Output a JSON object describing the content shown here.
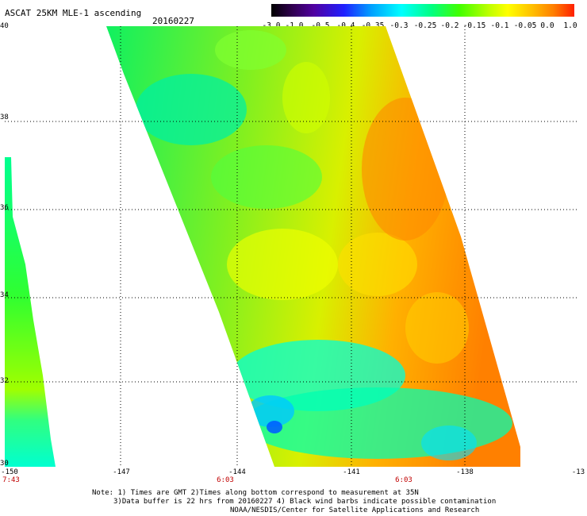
{
  "header": {
    "title": "ASCAT 25KM MLE-1 ascending",
    "date": "20160227"
  },
  "colorbar": {
    "labels": [
      "-3.0",
      "-1.0",
      "-0.5",
      "-0.4",
      "-0.35",
      "-0.3",
      "-0.25",
      "-0.2",
      "-0.15",
      "-0.1",
      "-0.05",
      "0.0",
      "1.0"
    ]
  },
  "axes": {
    "lat_labels": [
      "40",
      "38",
      "36",
      "34",
      "32",
      "30"
    ],
    "lon_labels": [
      "-150",
      "-147",
      "-144",
      "-141",
      "-138",
      "-13"
    ],
    "time_labels": [
      "7:43",
      "6:03",
      "6:03"
    ]
  },
  "notes": {
    "line1": "Note: 1) Times are GMT 2)Times along bottom correspond to measurement at 35N",
    "line2": "3)Data buffer is 22 hrs from 20160227 4) Black wind barbs indicate possible contamination",
    "line3": "NOAA/NESDIS/Center for Satellite Applications and Research"
  },
  "colors": {
    "grid": "#000000",
    "time_label": "#c00000"
  }
}
